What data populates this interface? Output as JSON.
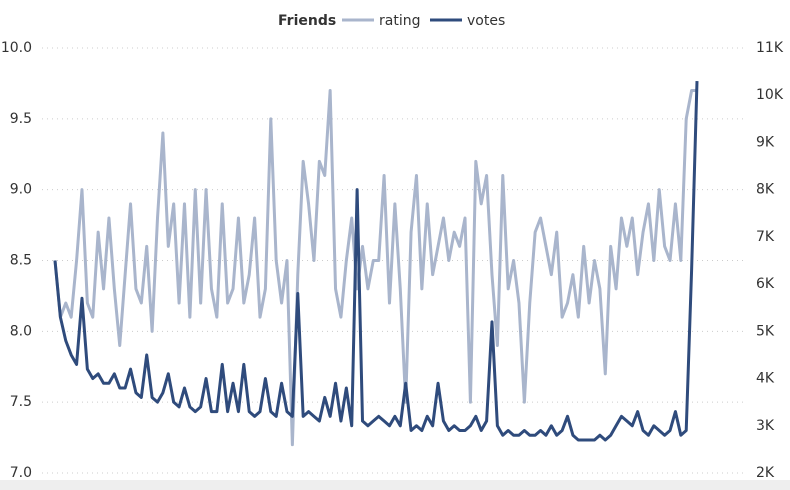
{
  "chart_data": {
    "type": "line",
    "title": "Friends",
    "categories": [
      null,
      null,
      null,
      null,
      null,
      null,
      null,
      null,
      null,
      null,
      null,
      null,
      null,
      null,
      null,
      null,
      null,
      null,
      null,
      null,
      null,
      null,
      null,
      null,
      null,
      null,
      null,
      null,
      null,
      null,
      null,
      null,
      null,
      null,
      null,
      null,
      null,
      null,
      null,
      null,
      null,
      null,
      null,
      null,
      null,
      null,
      null,
      null,
      null,
      null,
      null,
      null,
      null,
      null,
      null,
      null,
      null,
      null,
      null,
      null,
      null,
      null,
      null,
      null,
      null,
      null,
      null,
      null,
      null,
      null,
      null,
      null,
      null,
      null,
      null,
      null,
      null,
      null,
      null,
      null,
      null,
      null,
      null,
      null,
      null,
      null,
      null,
      null,
      null,
      null,
      null,
      null,
      null,
      null,
      null,
      null,
      null,
      null,
      null,
      null,
      null,
      null,
      null,
      null,
      null,
      null,
      null,
      null,
      null,
      null,
      null,
      null,
      null,
      null,
      null,
      null,
      null,
      null,
      null,
      null
    ],
    "series": [
      {
        "name": "rating",
        "color": "#a9b5cc",
        "values": [
          8.5,
          8.1,
          8.2,
          8.1,
          8.5,
          9.0,
          8.2,
          8.1,
          8.7,
          8.3,
          8.8,
          8.3,
          7.9,
          8.4,
          8.9,
          8.3,
          8.2,
          8.6,
          8.0,
          8.8,
          9.4,
          8.6,
          8.9,
          8.2,
          8.9,
          8.1,
          9.0,
          8.2,
          9.0,
          8.3,
          8.1,
          8.9,
          8.2,
          8.3,
          8.8,
          8.2,
          8.4,
          8.8,
          8.1,
          8.3,
          9.5,
          8.5,
          8.2,
          8.5,
          7.2,
          8.4,
          9.2,
          8.9,
          8.5,
          9.2,
          9.1,
          9.7,
          8.3,
          8.1,
          8.5,
          8.8,
          8.3,
          8.6,
          8.3,
          8.5,
          8.5,
          9.1,
          8.2,
          8.9,
          8.3,
          7.5,
          8.7,
          9.1,
          8.3,
          8.9,
          8.4,
          8.6,
          8.8,
          8.5,
          8.7,
          8.6,
          8.8,
          7.5,
          9.2,
          8.9,
          9.1,
          8.4,
          7.9,
          9.1,
          8.3,
          8.5,
          8.2,
          7.5,
          8.2,
          8.7,
          8.8,
          8.6,
          8.4,
          8.7,
          8.1,
          8.2,
          8.4,
          8.1,
          8.6,
          8.2,
          8.5,
          8.3,
          7.7,
          8.6,
          8.3,
          8.8,
          8.6,
          8.8,
          8.4,
          8.7,
          8.9,
          8.5,
          9.0,
          8.6,
          8.5,
          8.9,
          8.5,
          9.5,
          9.7,
          9.7
        ]
      },
      {
        "name": "votes",
        "color": "#2f4b7c",
        "axis": "y2",
        "values": [
          6500,
          5300,
          4800,
          4500,
          4300,
          5700,
          4200,
          4000,
          4100,
          3900,
          3900,
          4100,
          3800,
          3800,
          4200,
          3700,
          3600,
          4500,
          3600,
          3500,
          3700,
          4100,
          3500,
          3400,
          3800,
          3400,
          3300,
          3400,
          4000,
          3300,
          3300,
          4300,
          3300,
          3900,
          3300,
          4300,
          3300,
          3200,
          3300,
          4000,
          3300,
          3200,
          3900,
          3300,
          3200,
          5800,
          3200,
          3300,
          3200,
          3100,
          3600,
          3200,
          3900,
          3100,
          3800,
          3000,
          8000,
          3100,
          3000,
          3100,
          3200,
          3100,
          3000,
          3200,
          3000,
          3900,
          2900,
          3000,
          2900,
          3200,
          3000,
          3900,
          3100,
          2900,
          3000,
          2900,
          2900,
          3000,
          3200,
          2900,
          3100,
          5200,
          3000,
          2800,
          2900,
          2800,
          2800,
          2900,
          2800,
          2800,
          2900,
          2800,
          3000,
          2800,
          2900,
          3200,
          2800,
          2700,
          2700,
          2700,
          2700,
          2800,
          2700,
          2800,
          3000,
          3200,
          3100,
          3000,
          3300,
          2900,
          2800,
          3000,
          2900,
          2800,
          2900,
          3300,
          2800,
          2900,
          6300,
          10300
        ]
      }
    ],
    "ylim": [
      7,
      10
    ],
    "yticks": [
      {
        "value": 7,
        "label": "7.0"
      },
      7.5,
      {
        "value": 8,
        "label": "8.0"
      },
      8.5,
      {
        "value": 9,
        "label": "9.0"
      },
      9.5,
      {
        "value": 10,
        "label": "10.0"
      }
    ],
    "y2lim": [
      2000,
      11000
    ],
    "y2ticks": [
      {
        "value": 2000,
        "label": "2K"
      },
      {
        "value": 3000,
        "label": "3K"
      },
      {
        "value": 4000,
        "label": "4K"
      },
      {
        "value": 5000,
        "label": "5K"
      },
      {
        "value": 6000,
        "label": "6K"
      },
      {
        "value": 7000,
        "label": "7K"
      },
      {
        "value": 8000,
        "label": "8K"
      },
      {
        "value": 9000,
        "label": "9K"
      },
      {
        "value": 10000,
        "label": "10K"
      },
      {
        "value": 11000,
        "label": "11K"
      }
    ],
    "grid": true,
    "legend": "top"
  }
}
